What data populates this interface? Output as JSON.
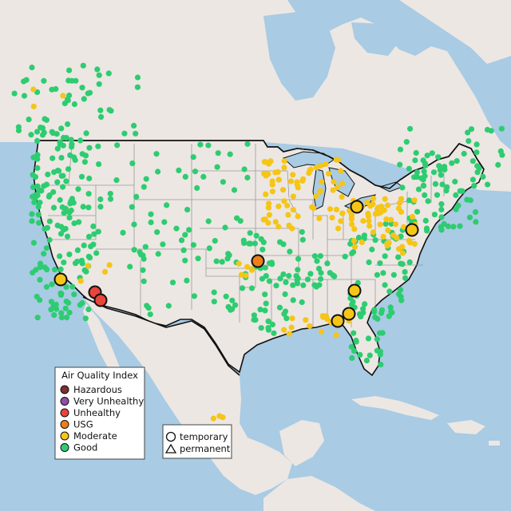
{
  "legend_aqi": {
    "title": "Air Quality Index",
    "items": [
      {
        "label": "Hazardous",
        "color": "#7e2f2f"
      },
      {
        "label": "Very Unhealthy",
        "color": "#8f4fa8"
      },
      {
        "label": "Unhealthy",
        "color": "#e8453c"
      },
      {
        "label": "USG",
        "color": "#ee7e1c"
      },
      {
        "label": "Moderate",
        "color": "#f5c518"
      },
      {
        "label": "Good",
        "color": "#2ecc71"
      }
    ]
  },
  "legend_type": {
    "items": [
      {
        "label": "temporary",
        "shape": "circle"
      },
      {
        "label": "permanent",
        "shape": "triangle"
      }
    ]
  },
  "colors": {
    "ocean": "#a9cbe4",
    "land": "#ece7e3",
    "good": "#2ecc71",
    "moderate": "#f5c518",
    "usg": "#ee7e1c",
    "unhealthy": "#e8453c",
    "border": "#111111",
    "state_lines": "#9a9a9a"
  },
  "temporary_monitors": [
    {
      "aqi": "unhealthy",
      "count": 2
    },
    {
      "aqi": "usg",
      "count": 1
    },
    {
      "aqi": "moderate",
      "count": 7
    }
  ]
}
